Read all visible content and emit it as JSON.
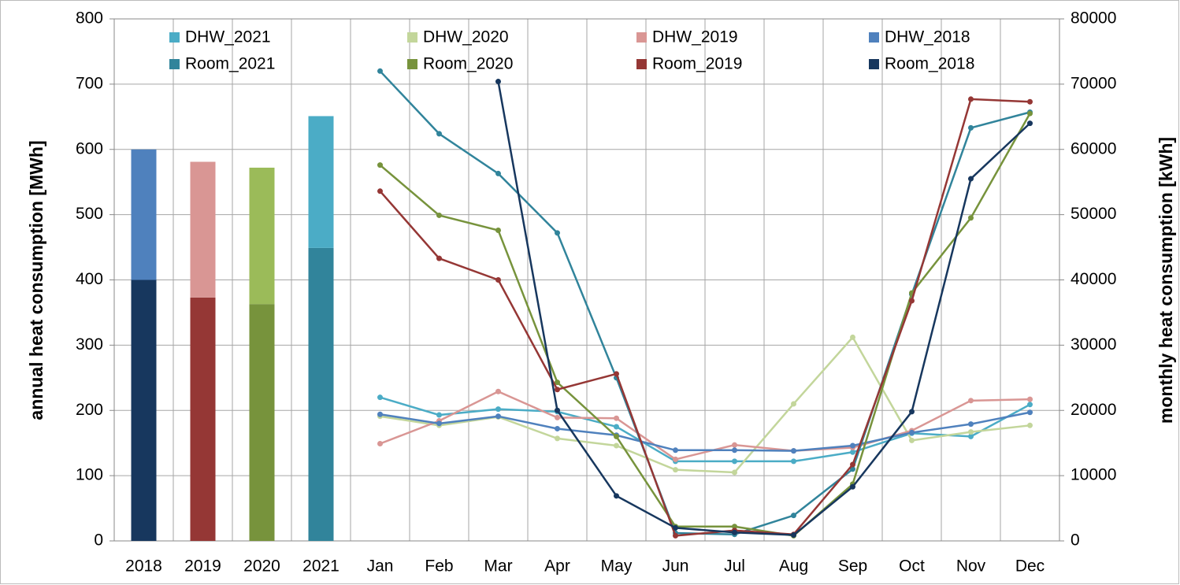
{
  "chart_data": [
    {
      "type": "bar",
      "stacked": true,
      "ylabel": "annual heat consumption [MWh]",
      "categories": [
        "2018",
        "2019",
        "2020",
        "2021"
      ],
      "series": [
        {
          "colors": [
            "#17375e",
            "#953735",
            "#77933c",
            "#31849b"
          ],
          "values": [
            400,
            373,
            363,
            449
          ]
        },
        {
          "colors": [
            "#4f81bd",
            "#d99694",
            "#9bbb59",
            "#4bacc6"
          ],
          "values": [
            200,
            208,
            209,
            202
          ]
        }
      ],
      "ylim": [
        0,
        800
      ],
      "yticks": [
        0,
        100,
        200,
        300,
        400,
        500,
        600,
        700,
        800
      ],
      "grid": true
    },
    {
      "type": "line",
      "y2label": "monthly heat consumption [kWh]",
      "categories": [
        "Jan",
        "Feb",
        "Mar",
        "Apr",
        "May",
        "Jun",
        "Jul",
        "Aug",
        "Sep",
        "Oct",
        "Nov",
        "Dec"
      ],
      "series": [
        {
          "name": "DHW_2021",
          "color": "#4bacc6",
          "axis": "y2",
          "values": [
            22000,
            19300,
            20200,
            19800,
            17500,
            12200,
            12200,
            12200,
            13600,
            16500,
            16000,
            20900
          ]
        },
        {
          "name": "DHW_2020",
          "color": "#c3d69b",
          "axis": "y2",
          "values": [
            19100,
            17700,
            19000,
            15700,
            14600,
            10900,
            10500,
            21000,
            31200,
            15400,
            16700,
            17700
          ]
        },
        {
          "name": "DHW_2019",
          "color": "#d99694",
          "axis": "y2",
          "values": [
            14900,
            18400,
            22900,
            18900,
            18800,
            12500,
            14700,
            13800,
            14300,
            16900,
            21500,
            21700
          ]
        },
        {
          "name": "DHW_2018",
          "color": "#4f81bd",
          "axis": "y2",
          "values": [
            19400,
            18000,
            19100,
            17200,
            16200,
            13900,
            13900,
            13800,
            14600,
            16600,
            17900,
            19700
          ]
        },
        {
          "name": "Room_2021",
          "color": "#31849b",
          "axis": "y2",
          "values": [
            72000,
            62400,
            56300,
            47200,
            25000,
            1200,
            1000,
            3900,
            11000,
            37800,
            63300,
            65700
          ]
        },
        {
          "name": "Room_2020",
          "color": "#77933c",
          "axis": "y2",
          "values": [
            57600,
            49900,
            47600,
            24300,
            16000,
            2200,
            2200,
            800,
            8700,
            38000,
            49500,
            65500
          ]
        },
        {
          "name": "Room_2019",
          "color": "#953735",
          "axis": "y2",
          "values": [
            53600,
            43300,
            40000,
            23200,
            25600,
            800,
            1600,
            1000,
            11700,
            36800,
            67700,
            67300
          ]
        },
        {
          "name": "Room_2018",
          "color": "#17375e",
          "axis": "y2",
          "values": [
            null,
            null,
            70400,
            20000,
            6900,
            2000,
            1300,
            900,
            8300,
            19800,
            55500,
            64000
          ]
        }
      ],
      "y2lim": [
        0,
        80000
      ],
      "y2ticks": [
        0,
        10000,
        20000,
        30000,
        40000,
        50000,
        60000,
        70000,
        80000
      ]
    }
  ]
}
